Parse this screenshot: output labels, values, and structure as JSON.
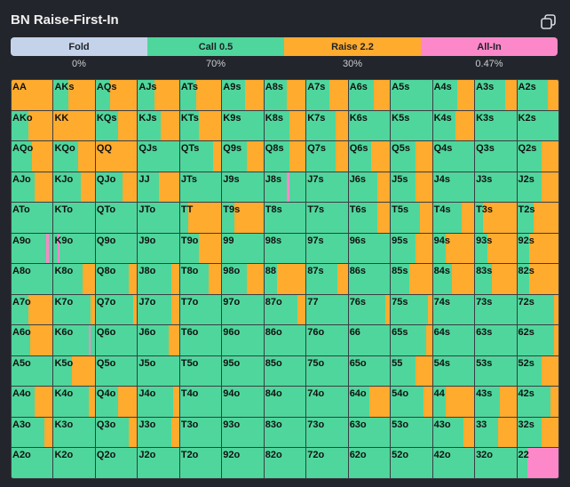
{
  "header": {
    "title": "BN Raise-First-In",
    "copy_icon": "copy-icon"
  },
  "colors": {
    "fold": "#c4d3ea",
    "call": "#4fd69c",
    "raise": "#feab2e",
    "allin": "#fd88c9"
  },
  "legend": [
    {
      "key": "fold",
      "label": "Fold",
      "pct": "0%"
    },
    {
      "key": "call",
      "label": "Call 0.5",
      "pct": "70%"
    },
    {
      "key": "raise",
      "label": "Raise 2.2",
      "pct": "30%"
    },
    {
      "key": "allin",
      "label": "All-In",
      "pct": "0.47%"
    }
  ],
  "grid": {
    "ranks": [
      "A",
      "K",
      "Q",
      "J",
      "T",
      "9",
      "8",
      "7",
      "6",
      "5",
      "4",
      "3",
      "2"
    ],
    "strategy": [
      [
        {
          "r": 1
        },
        {
          "c": 0.35,
          "r": 0.65
        },
        {
          "c": 0.35,
          "r": 0.65
        },
        {
          "c": 0.4,
          "r": 0.6
        },
        {
          "c": 0.4,
          "r": 0.6
        },
        {
          "c": 0.55,
          "r": 0.45
        },
        {
          "c": 0.55,
          "r": 0.45
        },
        {
          "c": 0.55,
          "r": 0.45
        },
        {
          "c": 0.6,
          "r": 0.4
        },
        {
          "c": 1.0
        },
        {
          "c": 0.6,
          "r": 0.4
        },
        {
          "c": 0.72,
          "r": 0.28
        },
        {
          "c": 0.75,
          "r": 0.25
        }
      ],
      [
        {
          "c": 0.4,
          "r": 0.6
        },
        {
          "r": 1
        },
        {
          "c": 0.55,
          "r": 0.45
        },
        {
          "c": 0.55,
          "r": 0.45
        },
        {
          "c": 0.45,
          "r": 0.55
        },
        {
          "c": 1.0
        },
        {
          "c": 0.6,
          "r": 0.4
        },
        {
          "c": 0.7,
          "r": 0.3
        },
        {
          "c": 1.0
        },
        {
          "c": 1.0
        },
        {
          "c": 0.55,
          "r": 0.45
        },
        {
          "c": 1.0
        },
        {
          "c": 1.0
        }
      ],
      [
        {
          "c": 0.5,
          "r": 0.5
        },
        {
          "c": 0.6,
          "r": 0.4
        },
        {
          "r": 1
        },
        {
          "c": 1.0
        },
        {
          "c": 0.8,
          "r": 0.2
        },
        {
          "c": 0.6,
          "r": 0.4
        },
        {
          "c": 0.6,
          "r": 0.4
        },
        {
          "c": 0.7,
          "r": 0.3
        },
        {
          "c": 0.55,
          "r": 0.45
        },
        {
          "c": 0.6,
          "r": 0.4
        },
        {
          "c": 1.0
        },
        {
          "c": 1.0
        },
        {
          "c": 0.6,
          "r": 0.4
        }
      ],
      [
        {
          "c": 0.55,
          "r": 0.45
        },
        {
          "c": 0.65,
          "r": 0.35
        },
        {
          "c": 0.65,
          "r": 0.35
        },
        {
          "c": 0.5,
          "r": 0.5
        },
        {
          "c": 1.0
        },
        {
          "c": 1.0
        },
        {
          "c": 0.55,
          "a": 0.05,
          "c2": 0.4
        },
        {
          "c": 1.0
        },
        {
          "c": 0.7,
          "r": 0.3
        },
        {
          "c": 0.6,
          "r": 0.4
        },
        {
          "c": 1.0
        },
        {
          "c": 1.0
        },
        {
          "c": 0.6,
          "r": 0.4
        }
      ],
      [
        {
          "c": 1.0
        },
        {
          "c": 1.0
        },
        {
          "c": 1.0
        },
        {
          "c": 1.0
        },
        {
          "c": 0.2,
          "r": 0.8
        },
        {
          "c": 0.3,
          "r": 0.7
        },
        {
          "c": 1.0
        },
        {
          "c": 1.0
        },
        {
          "c": 0.7,
          "r": 0.3
        },
        {
          "c": 0.7,
          "r": 0.3
        },
        {
          "c": 0.7,
          "r": 0.3
        },
        {
          "c": 0.2,
          "r": 0.8
        },
        {
          "c": 0.4,
          "r": 0.6
        }
      ],
      [
        {
          "c": 0.85,
          "a": 0.05,
          "c2": 0.1
        },
        {
          "c": 0.1,
          "a": 0.05,
          "c2": 0.85
        },
        {
          "c": 1.0
        },
        {
          "c": 1.0
        },
        {
          "c": 0.45,
          "r": 0.55
        },
        {
          "c": 1.0
        },
        {
          "c": 1.0
        },
        {
          "c": 1.0
        },
        {
          "c": 1.0
        },
        {
          "c": 0.6,
          "r": 0.4
        },
        {
          "c": 0.3,
          "r": 0.7
        },
        {
          "c": 0.3,
          "r": 0.7
        },
        {
          "c": 0.3,
          "r": 0.7
        }
      ],
      [
        {
          "c": 1.0
        },
        {
          "c": 0.7,
          "r": 0.3
        },
        {
          "c": 0.8,
          "r": 0.2
        },
        {
          "c": 0.8,
          "r": 0.2
        },
        {
          "c": 0.7,
          "r": 0.3
        },
        {
          "c": 0.6,
          "r": 0.4
        },
        {
          "c": 0.3,
          "r": 0.7
        },
        {
          "c": 0.75,
          "r": 0.25
        },
        {
          "c": 1.0
        },
        {
          "c": 0.45,
          "r": 0.55
        },
        {
          "c": 0.45,
          "r": 0.55
        },
        {
          "c": 0.4,
          "r": 0.6
        },
        {
          "c": 0.3,
          "r": 0.7
        }
      ],
      [
        {
          "c": 0.4,
          "r": 0.6
        },
        {
          "c": 0.9,
          "r": 0.1
        },
        {
          "c": 0.9,
          "r": 0.1
        },
        {
          "c": 0.8,
          "r": 0.2
        },
        {
          "c": 1.0
        },
        {
          "c": 1.0
        },
        {
          "c": 0.8,
          "r": 0.2
        },
        {
          "c": 1.0
        },
        {
          "c": 0.9,
          "r": 0.1
        },
        {
          "c": 0.9,
          "r": 0.1
        },
        {
          "c": 1.0
        },
        {
          "c": 1.0
        },
        {
          "c": 0.9,
          "r": 0.1
        }
      ],
      [
        {
          "c": 0.45,
          "r": 0.55
        },
        {
          "c": 0.85,
          "a": 0.05,
          "c2": 0.1
        },
        {
          "c": 1.0
        },
        {
          "c": 0.75,
          "r": 0.25
        },
        {
          "c": 1.0
        },
        {
          "c": 1.0
        },
        {
          "c": 1.0
        },
        {
          "c": 1.0
        },
        {
          "c": 1.0
        },
        {
          "c": 0.85,
          "r": 0.15
        },
        {
          "c": 1.0
        },
        {
          "c": 1.0
        },
        {
          "c": 0.9,
          "r": 0.1
        }
      ],
      [
        {
          "c": 1.0
        },
        {
          "c": 0.45,
          "r": 0.55
        },
        {
          "c": 1.0
        },
        {
          "c": 1.0
        },
        {
          "c": 1.0
        },
        {
          "c": 1.0
        },
        {
          "c": 1.0
        },
        {
          "c": 1.0
        },
        {
          "c": 1.0
        },
        {
          "c": 0.6,
          "r": 0.4
        },
        {
          "c": 1.0
        },
        {
          "c": 1.0
        },
        {
          "c": 0.6,
          "r": 0.4
        }
      ],
      [
        {
          "c": 0.55,
          "r": 0.45
        },
        {
          "c": 0.85,
          "r": 0.15
        },
        {
          "c": 0.55,
          "r": 0.45
        },
        {
          "c": 0.85,
          "r": 0.15
        },
        {
          "c": 1.0
        },
        {
          "c": 1.0
        },
        {
          "c": 1.0
        },
        {
          "c": 1.0
        },
        {
          "c": 0.5,
          "r": 0.5
        },
        {
          "c": 0.8,
          "r": 0.2
        },
        {
          "c": 0.3,
          "r": 0.7
        },
        {
          "c": 0.6,
          "r": 0.4
        },
        {
          "c": 0.8,
          "r": 0.2
        }
      ],
      [
        {
          "c": 0.8,
          "r": 0.2
        },
        {
          "c": 1.0
        },
        {
          "c": 0.8,
          "r": 0.2
        },
        {
          "c": 0.8,
          "r": 0.2
        },
        {
          "c": 1.0
        },
        {
          "c": 1.0
        },
        {
          "c": 1.0
        },
        {
          "c": 1.0
        },
        {
          "c": 1.0
        },
        {
          "c": 1.0
        },
        {
          "c": 0.75,
          "r": 0.25
        },
        {
          "c": 0.55,
          "r": 0.45
        },
        {
          "c": 0.6,
          "r": 0.4
        }
      ],
      [
        {
          "c": 1.0
        },
        {
          "c": 1.0
        },
        {
          "c": 1.0
        },
        {
          "c": 1.0
        },
        {
          "c": 1.0
        },
        {
          "c": 1.0
        },
        {
          "c": 1.0
        },
        {
          "c": 1.0
        },
        {
          "c": 1.0
        },
        {
          "c": 1.0
        },
        {
          "c": 1.0
        },
        {
          "c": 1.0
        },
        {
          "c": 0.25,
          "a": 0.75
        }
      ]
    ]
  }
}
